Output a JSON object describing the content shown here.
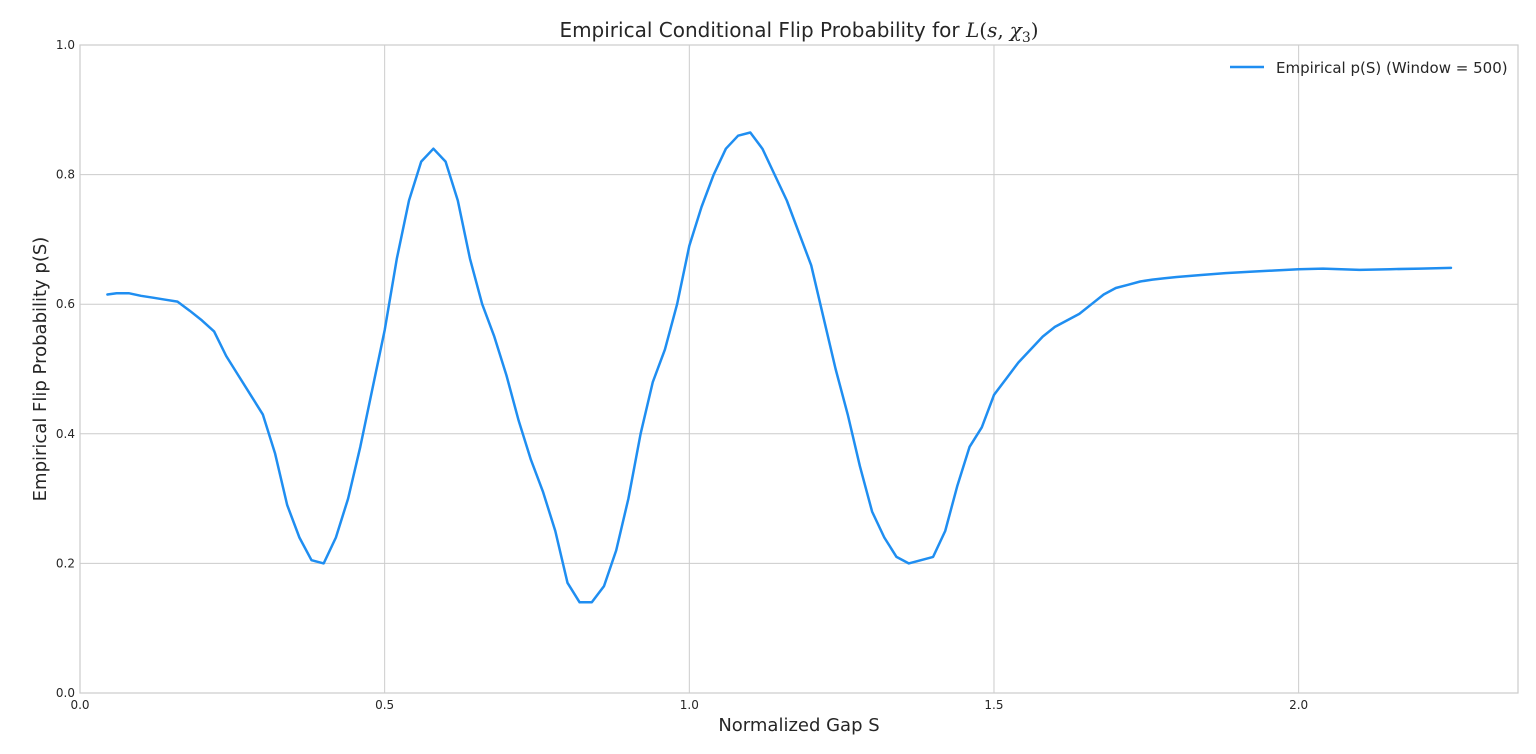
{
  "chart_data": {
    "type": "line",
    "title_prefix": "Empirical Conditional Flip Probability for ",
    "title_math": {
      "L": "L",
      "open": "(",
      "s": "s",
      "comma": ",",
      "chi": "χ",
      "sub": "3",
      "close": ")"
    },
    "xlabel": "Normalized Gap S",
    "ylabel": "Empirical Flip Probability p(S)",
    "xlim": [
      0.0,
      2.36
    ],
    "ylim": [
      0.0,
      1.0
    ],
    "xticks": [
      0.0,
      0.5,
      1.0,
      1.5,
      2.0
    ],
    "xtick_labels": [
      "0.0",
      "0.5",
      "1.0",
      "1.5",
      "2.0"
    ],
    "yticks": [
      0.0,
      0.2,
      0.4,
      0.6,
      0.8,
      1.0
    ],
    "ytick_labels": [
      "0.0",
      "0.2",
      "0.4",
      "0.6",
      "0.8",
      "1.0"
    ],
    "grid": true,
    "legend_position": "top-right",
    "series": [
      {
        "name": "Empirical p(S) (Window = 500)",
        "color": "#1f8ef1",
        "x": [
          0.045,
          0.06,
          0.08,
          0.1,
          0.12,
          0.14,
          0.16,
          0.18,
          0.2,
          0.22,
          0.24,
          0.26,
          0.28,
          0.3,
          0.32,
          0.34,
          0.36,
          0.38,
          0.4,
          0.42,
          0.44,
          0.46,
          0.48,
          0.5,
          0.52,
          0.54,
          0.56,
          0.58,
          0.6,
          0.62,
          0.64,
          0.66,
          0.68,
          0.7,
          0.72,
          0.74,
          0.76,
          0.78,
          0.8,
          0.82,
          0.84,
          0.86,
          0.88,
          0.9,
          0.92,
          0.94,
          0.96,
          0.98,
          1.0,
          1.02,
          1.04,
          1.06,
          1.08,
          1.1,
          1.12,
          1.14,
          1.16,
          1.18,
          1.2,
          1.22,
          1.24,
          1.26,
          1.28,
          1.3,
          1.32,
          1.34,
          1.36,
          1.38,
          1.4,
          1.42,
          1.44,
          1.46,
          1.48,
          1.5,
          1.52,
          1.54,
          1.56,
          1.58,
          1.6,
          1.62,
          1.64,
          1.66,
          1.68,
          1.7,
          1.72,
          1.74,
          1.76,
          1.78,
          1.8,
          1.84,
          1.88,
          1.92,
          1.96,
          2.0,
          2.04,
          2.07,
          2.1,
          2.15,
          2.2,
          2.25
        ],
        "y": [
          0.615,
          0.617,
          0.617,
          0.613,
          0.61,
          0.607,
          0.604,
          0.59,
          0.575,
          0.558,
          0.52,
          0.49,
          0.46,
          0.43,
          0.37,
          0.29,
          0.24,
          0.205,
          0.2,
          0.24,
          0.3,
          0.38,
          0.47,
          0.56,
          0.67,
          0.76,
          0.82,
          0.84,
          0.82,
          0.76,
          0.67,
          0.6,
          0.55,
          0.49,
          0.42,
          0.36,
          0.31,
          0.25,
          0.17,
          0.14,
          0.14,
          0.165,
          0.22,
          0.3,
          0.4,
          0.48,
          0.53,
          0.6,
          0.69,
          0.75,
          0.8,
          0.84,
          0.86,
          0.865,
          0.84,
          0.8,
          0.76,
          0.71,
          0.66,
          0.58,
          0.5,
          0.43,
          0.35,
          0.28,
          0.24,
          0.21,
          0.2,
          0.205,
          0.21,
          0.25,
          0.32,
          0.38,
          0.41,
          0.46,
          0.485,
          0.51,
          0.53,
          0.55,
          0.565,
          0.575,
          0.585,
          0.6,
          0.615,
          0.625,
          0.63,
          0.635,
          0.638,
          0.64,
          0.642,
          0.645,
          0.648,
          0.65,
          0.652,
          0.654,
          0.655,
          0.654,
          0.653,
          0.654,
          0.655,
          0.656
        ]
      }
    ]
  }
}
